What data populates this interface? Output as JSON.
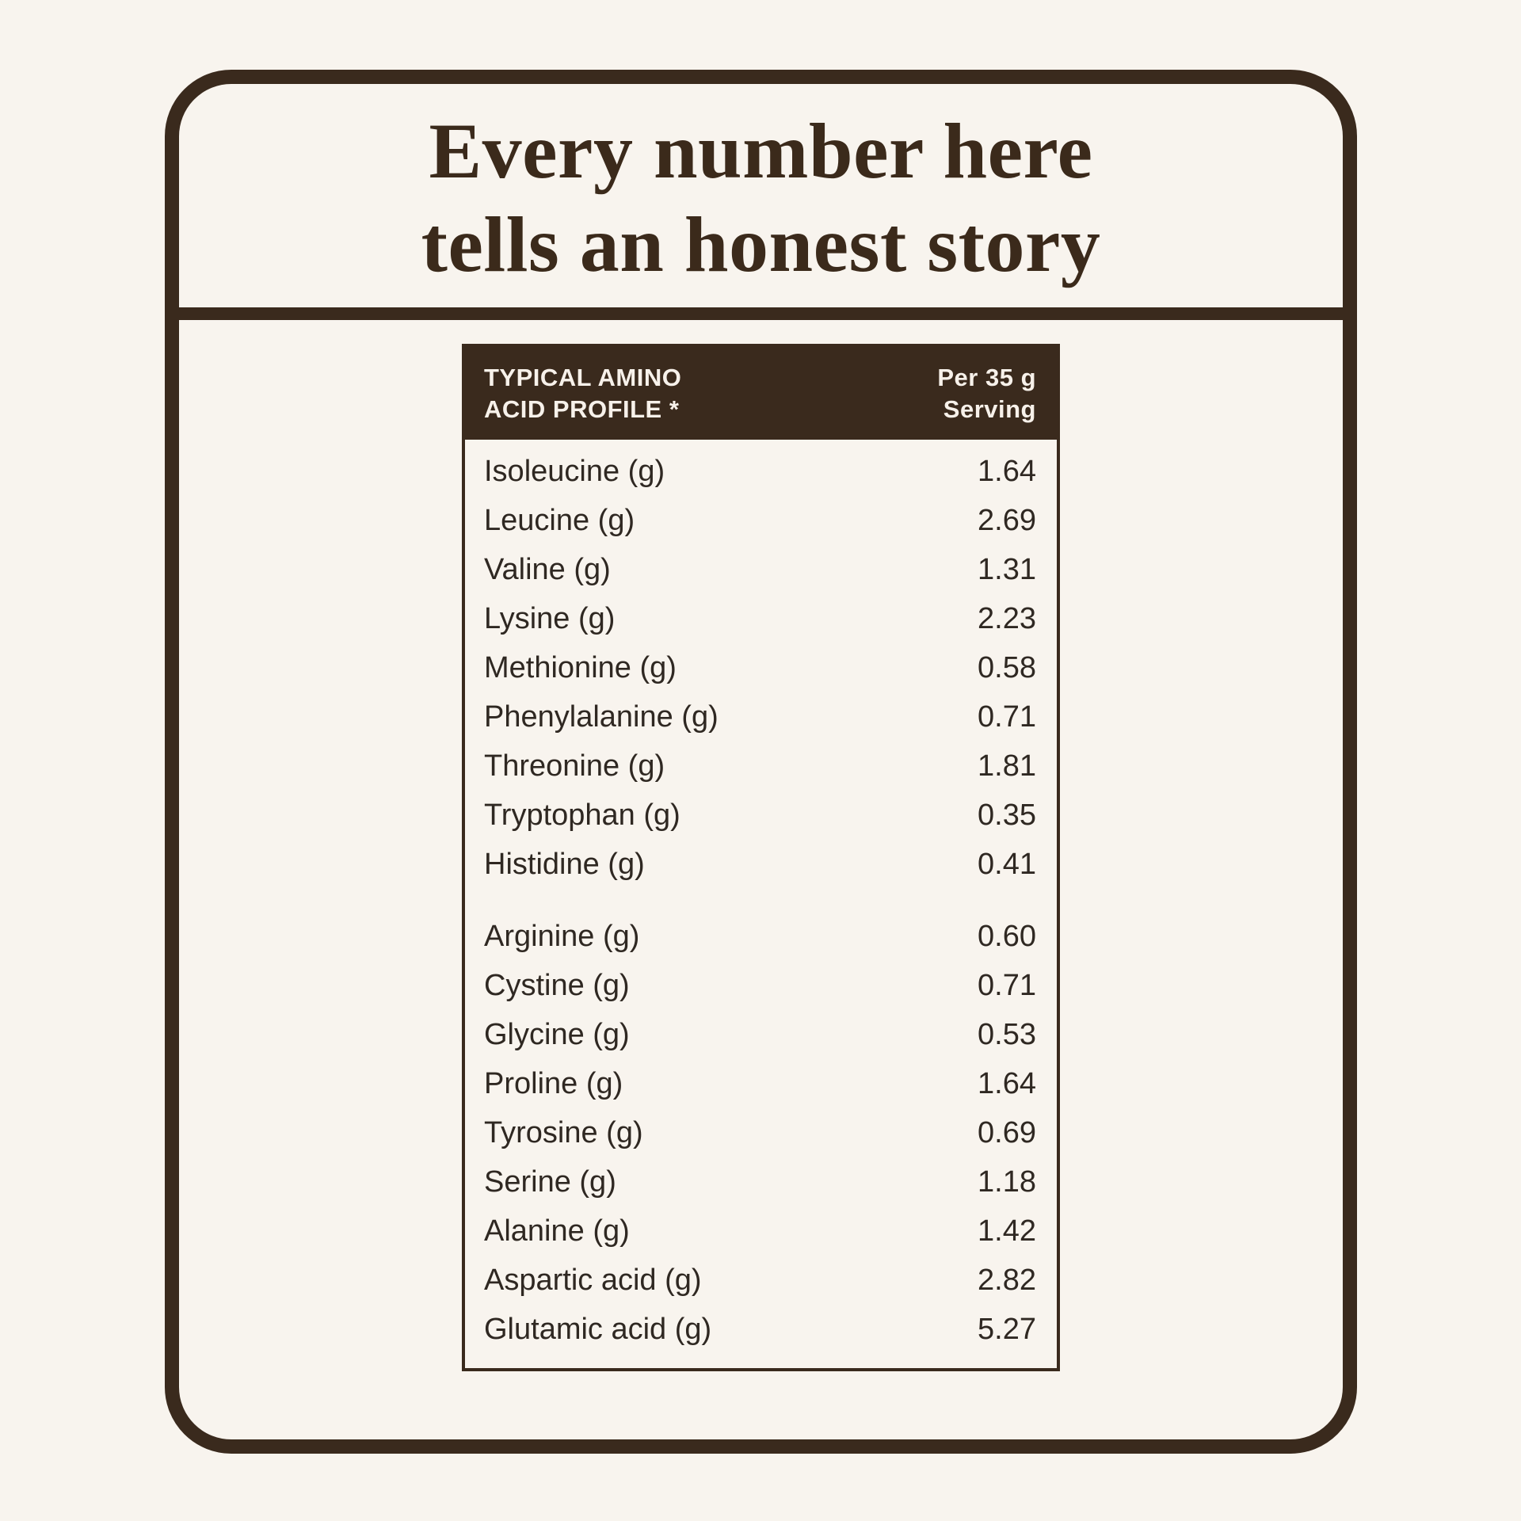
{
  "colors": {
    "background": "#F8F4EE",
    "brown": "#3A2A1D",
    "title_text": "#3B2A1B",
    "row_text": "#2F2822",
    "header_text": "#F7F1EA"
  },
  "card": {
    "title_line1": "Every number here",
    "title_line2": "tells an honest story"
  },
  "table": {
    "header": {
      "left_line1": "TYPICAL AMINO",
      "left_line2": "ACID PROFILE *",
      "right_line1": "Per 35 g",
      "right_line2": "Serving"
    },
    "groups": [
      {
        "rows": [
          {
            "label": "Isoleucine (g)",
            "value": "1.64"
          },
          {
            "label": "Leucine (g)",
            "value": "2.69"
          },
          {
            "label": "Valine (g)",
            "value": "1.31"
          },
          {
            "label": "Lysine (g)",
            "value": "2.23"
          },
          {
            "label": "Methionine (g)",
            "value": "0.58"
          },
          {
            "label": "Phenylalanine (g)",
            "value": "0.71"
          },
          {
            "label": "Threonine (g)",
            "value": "1.81"
          },
          {
            "label": "Tryptophan (g)",
            "value": "0.35"
          },
          {
            "label": "Histidine (g)",
            "value": "0.41"
          }
        ]
      },
      {
        "rows": [
          {
            "label": "Arginine (g)",
            "value": "0.60"
          },
          {
            "label": "Cystine (g)",
            "value": "0.71"
          },
          {
            "label": "Glycine (g)",
            "value": "0.53"
          },
          {
            "label": "Proline (g)",
            "value": "1.64"
          },
          {
            "label": "Tyrosine (g)",
            "value": "0.69"
          },
          {
            "label": "Serine (g)",
            "value": "1.18"
          },
          {
            "label": "Alanine (g)",
            "value": "1.42"
          },
          {
            "label": "Aspartic acid (g)",
            "value": "2.82"
          },
          {
            "label": "Glutamic acid (g)",
            "value": "5.27"
          }
        ]
      }
    ]
  }
}
